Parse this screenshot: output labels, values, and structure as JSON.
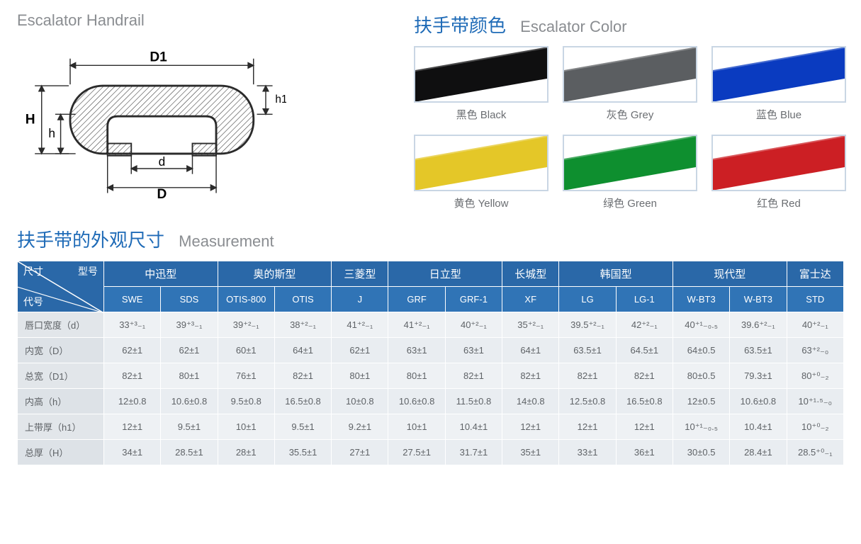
{
  "left": {
    "title_en": "Escalator Handrail",
    "diagram": {
      "labels": {
        "D1": "D1",
        "h1": "h1",
        "H": "H",
        "h": "h",
        "d": "d",
        "D": "D"
      },
      "stroke": "#2b2b2b",
      "hatch": "#3a3a3a",
      "line_width": 2
    }
  },
  "right": {
    "title_cn": "扶手带颜色",
    "title_en": "Escalator Color",
    "swatches": [
      {
        "label": "黑色 Black",
        "color": "#0f0f10"
      },
      {
        "label": "灰色 Grey",
        "color": "#5b5e61"
      },
      {
        "label": "蓝色 Blue",
        "color": "#0a3bc0"
      },
      {
        "label": "黄色 Yellow",
        "color": "#e4c728"
      },
      {
        "label": "绿色 Green",
        "color": "#0e8f2f"
      },
      {
        "label": "红色 Red",
        "color": "#cc1f24"
      }
    ]
  },
  "measurement": {
    "title_cn": "扶手带的外观尺寸",
    "title_en": "Measurement",
    "corner": {
      "size": "尺寸",
      "model": "型号",
      "code": "代号"
    },
    "header_bg": "#2a68a8",
    "subheader_bg": "#3074b6",
    "body_bg_odd": "#eef1f4",
    "body_bg_even": "#e9edf1",
    "groups": [
      {
        "label": "中迅型",
        "cols": [
          "SWE",
          "SDS"
        ]
      },
      {
        "label": "奥的斯型",
        "cols": [
          "OTIS-800",
          "OTIS"
        ]
      },
      {
        "label": "三菱型",
        "cols": [
          "J"
        ]
      },
      {
        "label": "日立型",
        "cols": [
          "GRF",
          "GRF-1"
        ]
      },
      {
        "label": "长城型",
        "cols": [
          "XF"
        ]
      },
      {
        "label": "韩国型",
        "cols": [
          "LG",
          "LG-1"
        ]
      },
      {
        "label": "现代型",
        "cols": [
          "W-BT3",
          "W-BT3"
        ]
      },
      {
        "label": "富士达",
        "cols": [
          "STD"
        ]
      }
    ],
    "rows": [
      {
        "name": "唇口宽度（d）",
        "vals": [
          "33⁺³₋₁",
          "39⁺³₋₁",
          "39⁺²₋₁",
          "38⁺²₋₁",
          "41⁺²₋₁",
          "41⁺²₋₁",
          "40⁺²₋₁",
          "35⁺²₋₁",
          "39.5⁺²₋₁",
          "42⁺²₋₁",
          "40⁺¹₋₀.₅",
          "39.6⁺²₋₁",
          "40⁺²₋₁"
        ]
      },
      {
        "name": "内宽（D）",
        "vals": [
          "62±1",
          "62±1",
          "60±1",
          "64±1",
          "62±1",
          "63±1",
          "63±1",
          "64±1",
          "63.5±1",
          "64.5±1",
          "64±0.5",
          "63.5±1",
          "63⁺²₋₀"
        ]
      },
      {
        "name": "总宽（D1）",
        "vals": [
          "82±1",
          "80±1",
          "76±1",
          "82±1",
          "80±1",
          "80±1",
          "82±1",
          "82±1",
          "82±1",
          "82±1",
          "80±0.5",
          "79.3±1",
          "80⁺⁰₋₂"
        ]
      },
      {
        "name": "内高（h）",
        "vals": [
          "12±0.8",
          "10.6±0.8",
          "9.5±0.8",
          "16.5±0.8",
          "10±0.8",
          "10.6±0.8",
          "11.5±0.8",
          "14±0.8",
          "12.5±0.8",
          "16.5±0.8",
          "12±0.5",
          "10.6±0.8",
          "10⁺¹·⁵₋₀"
        ]
      },
      {
        "name": "上带厚（h1）",
        "vals": [
          "12±1",
          "9.5±1",
          "10±1",
          "9.5±1",
          "9.2±1",
          "10±1",
          "10.4±1",
          "12±1",
          "12±1",
          "12±1",
          "10⁺¹₋₀.₅",
          "10.4±1",
          "10⁺⁰₋₂"
        ]
      },
      {
        "name": "总厚（H）",
        "vals": [
          "34±1",
          "28.5±1",
          "28±1",
          "35.5±1",
          "27±1",
          "27.5±1",
          "31.7±1",
          "35±1",
          "33±1",
          "36±1",
          "30±0.5",
          "28.4±1",
          "28.5⁺⁰₋₁"
        ]
      }
    ]
  }
}
